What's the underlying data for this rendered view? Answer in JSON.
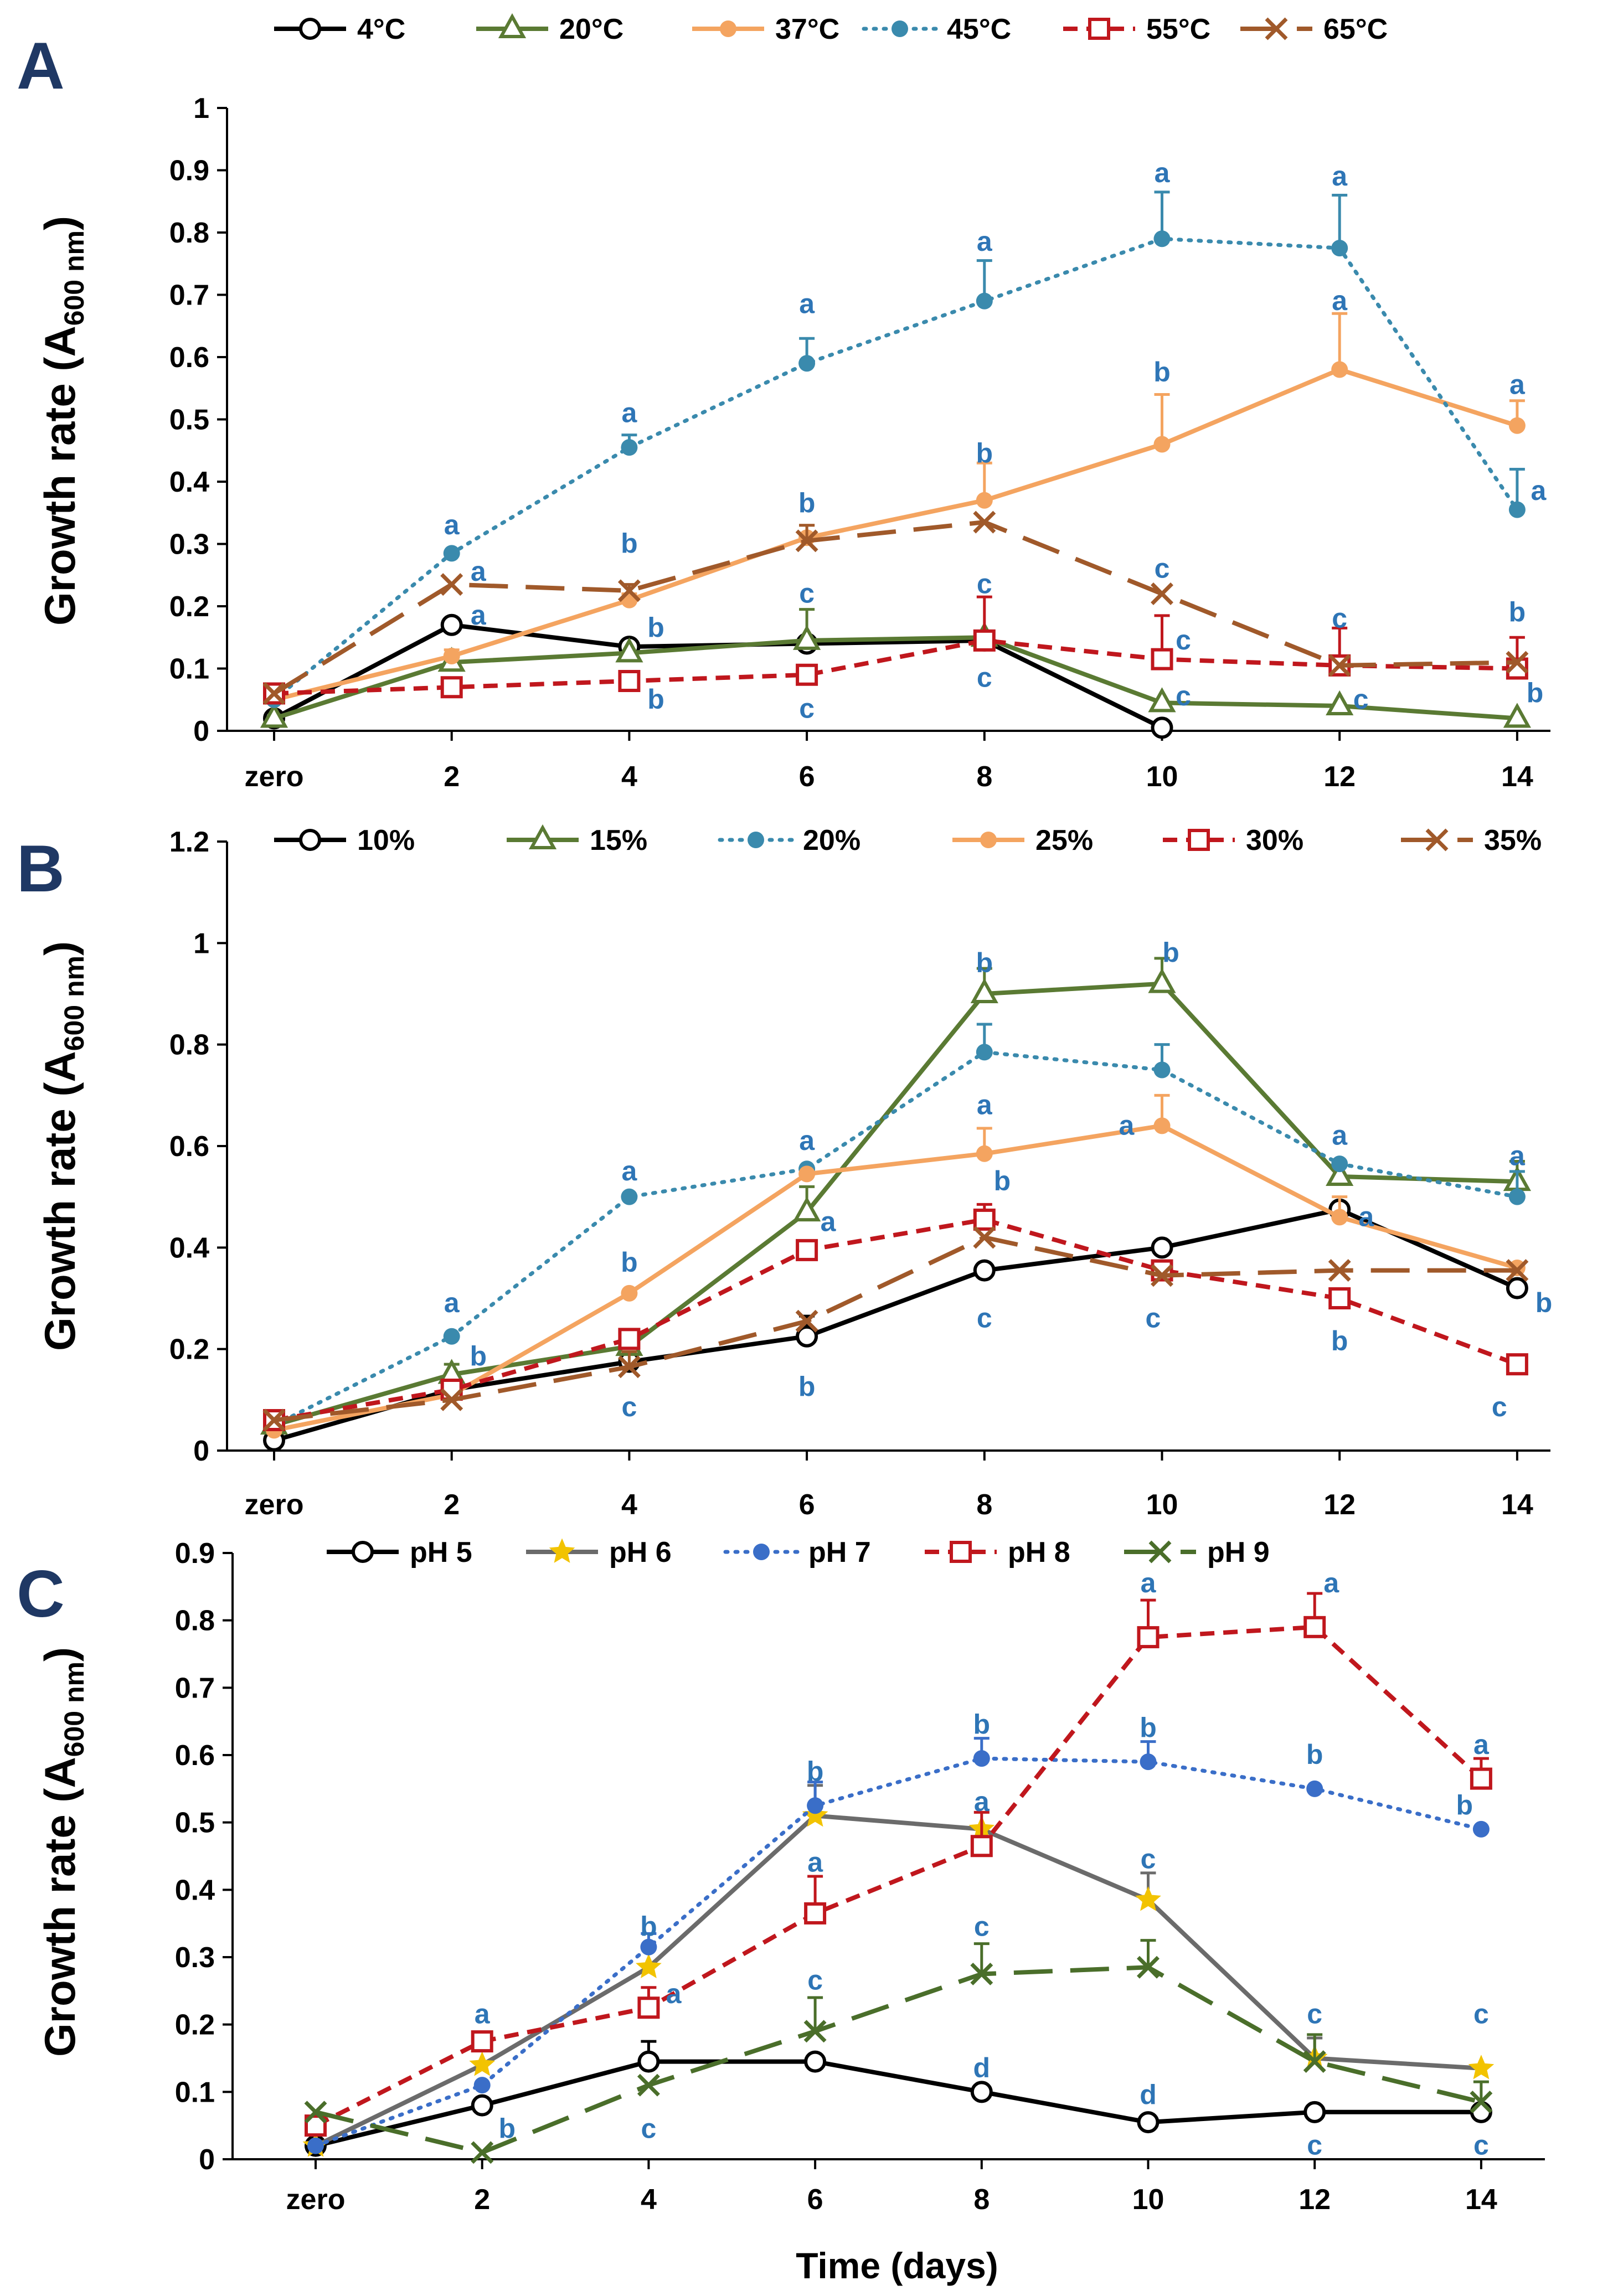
{
  "figure": {
    "x_axis_label": "Time (days)",
    "y_axis_label_main": "Growth rate (A",
    "y_axis_label_sub": "600 nm",
    "y_axis_label_close": ")"
  },
  "colors": {
    "black": "#000000",
    "olive": "#5a7a33",
    "orange": "#f4a460",
    "teal": "#3a8aad",
    "red": "#c0171d",
    "brown": "#a0592a",
    "gray": "#6b6b6b",
    "yellow": "#f2c300",
    "blue": "#3a6ec8",
    "green": "#4a6e2a",
    "annotation": "#2e75b6",
    "panel_letter": "#1f3864"
  },
  "chart_data": [
    {
      "panel": "A",
      "type": "line",
      "categories": [
        "zero",
        "2",
        "4",
        "6",
        "8",
        "10",
        "12",
        "14"
      ],
      "ylim": [
        0,
        1
      ],
      "yticks": [
        "0",
        "0.1",
        "0.2",
        "0.3",
        "0.4",
        "0.5",
        "0.6",
        "0.7",
        "0.8",
        "0.9",
        "1"
      ],
      "series": [
        {
          "name": "4°C",
          "color": "black",
          "dash": "solid",
          "marker": "circle-open",
          "values": [
            0.02,
            0.17,
            0.135,
            0.14,
            0.145,
            0.005,
            null,
            null
          ],
          "errors": [
            0,
            0,
            0.01,
            0,
            0,
            0,
            0,
            0
          ]
        },
        {
          "name": "20°C",
          "color": "olive",
          "dash": "solid",
          "marker": "triangle-open",
          "values": [
            0.02,
            0.11,
            0.125,
            0.145,
            0.15,
            0.045,
            0.04,
            0.02
          ],
          "errors": [
            0,
            0,
            0,
            0.05,
            0,
            0,
            0,
            0
          ]
        },
        {
          "name": "37°C",
          "color": "orange",
          "dash": "solid",
          "marker": "dot",
          "values": [
            0.05,
            0.12,
            0.21,
            0.31,
            0.37,
            0.46,
            0.58,
            0.49
          ],
          "errors": [
            0,
            0.01,
            0.01,
            0.02,
            0.06,
            0.08,
            0.09,
            0.04
          ]
        },
        {
          "name": "45°C",
          "color": "teal",
          "dash": "dotted",
          "marker": "dot",
          "values": [
            0.05,
            0.285,
            0.455,
            0.59,
            0.69,
            0.79,
            0.775,
            0.355
          ],
          "errors": [
            0,
            0,
            0.02,
            0.04,
            0.065,
            0.075,
            0.085,
            0.065
          ]
        },
        {
          "name": "55°C",
          "color": "red",
          "dash": "dashed",
          "marker": "square-open",
          "values": [
            0.06,
            0.07,
            0.08,
            0.09,
            0.145,
            0.115,
            0.105,
            0.1
          ],
          "errors": [
            0,
            0,
            0,
            0,
            0.07,
            0.07,
            0.06,
            0.05
          ]
        },
        {
          "name": "65°C",
          "color": "brown",
          "dash": "longdash",
          "marker": "x",
          "values": [
            0.06,
            0.235,
            0.225,
            0.305,
            0.335,
            0.22,
            0.105,
            0.11
          ],
          "errors": [
            0,
            0,
            0.01,
            0.025,
            0,
            0,
            0,
            0
          ]
        }
      ],
      "annotations": [
        {
          "text": "a",
          "x": 1,
          "y": 0.33
        },
        {
          "text": "a",
          "x": 1.15,
          "y": 0.255
        },
        {
          "text": "a",
          "x": 1.15,
          "y": 0.185
        },
        {
          "text": "a",
          "x": 2,
          "y": 0.51
        },
        {
          "text": "b",
          "x": 2,
          "y": 0.3
        },
        {
          "text": "b",
          "x": 2.15,
          "y": 0.165
        },
        {
          "text": "b",
          "x": 2.15,
          "y": 0.05
        },
        {
          "text": "a",
          "x": 3,
          "y": 0.685
        },
        {
          "text": "b",
          "x": 3,
          "y": 0.365
        },
        {
          "text": "c",
          "x": 3,
          "y": 0.22
        },
        {
          "text": "c",
          "x": 3,
          "y": 0.035
        },
        {
          "text": "a",
          "x": 4,
          "y": 0.785
        },
        {
          "text": "b",
          "x": 4,
          "y": 0.445
        },
        {
          "text": "c",
          "x": 4,
          "y": 0.235
        },
        {
          "text": "c",
          "x": 4,
          "y": 0.085
        },
        {
          "text": "a",
          "x": 5,
          "y": 0.895
        },
        {
          "text": "b",
          "x": 5,
          "y": 0.575
        },
        {
          "text": "c",
          "x": 5,
          "y": 0.26
        },
        {
          "text": "c",
          "x": 5.12,
          "y": 0.145
        },
        {
          "text": "c",
          "x": 5.12,
          "y": 0.055
        },
        {
          "text": "a",
          "x": 6,
          "y": 0.89
        },
        {
          "text": "a",
          "x": 6,
          "y": 0.69
        },
        {
          "text": "c",
          "x": 6,
          "y": 0.18
        },
        {
          "text": "c",
          "x": 6.12,
          "y": 0.05
        },
        {
          "text": "a",
          "x": 7,
          "y": 0.555
        },
        {
          "text": "a",
          "x": 7.12,
          "y": 0.385
        },
        {
          "text": "b",
          "x": 7,
          "y": 0.19
        },
        {
          "text": "b",
          "x": 7.1,
          "y": 0.06
        }
      ]
    },
    {
      "panel": "B",
      "type": "line",
      "categories": [
        "zero",
        "2",
        "4",
        "6",
        "8",
        "10",
        "12",
        "14"
      ],
      "ylim": [
        0,
        1.2
      ],
      "yticks": [
        "0",
        "0.2",
        "0.4",
        "0.6",
        "0.8",
        "1",
        "1.2"
      ],
      "series": [
        {
          "name": "10%",
          "color": "black",
          "dash": "solid",
          "marker": "circle-open",
          "values": [
            0.02,
            0.12,
            0.175,
            0.225,
            0.355,
            0.4,
            0.475,
            0.32
          ],
          "errors": [
            0,
            0,
            0,
            0.04,
            0,
            0,
            0,
            0
          ]
        },
        {
          "name": "15%",
          "color": "olive",
          "dash": "solid",
          "marker": "triangle-open",
          "values": [
            0.05,
            0.15,
            0.205,
            0.47,
            0.9,
            0.92,
            0.54,
            0.53
          ],
          "errors": [
            0,
            0.02,
            0,
            0.05,
            0.05,
            0.05,
            0,
            0.04
          ]
        },
        {
          "name": "20%",
          "color": "teal",
          "dash": "dotted",
          "marker": "dot",
          "values": [
            0.05,
            0.225,
            0.5,
            0.555,
            0.785,
            0.75,
            0.565,
            0.5
          ],
          "errors": [
            0,
            0,
            0,
            0,
            0.055,
            0.05,
            0,
            0.05
          ]
        },
        {
          "name": "25%",
          "color": "orange",
          "dash": "solid",
          "marker": "dot",
          "values": [
            0.04,
            0.11,
            0.31,
            0.545,
            0.585,
            0.64,
            0.46,
            0.36
          ],
          "errors": [
            0,
            0,
            0,
            0,
            0.05,
            0.06,
            0.04,
            0
          ]
        },
        {
          "name": "30%",
          "color": "red",
          "dash": "dashed",
          "marker": "square-open",
          "values": [
            0.06,
            0.12,
            0.22,
            0.395,
            0.455,
            0.355,
            0.3,
            0.17
          ],
          "errors": [
            0,
            0,
            0,
            0,
            0.03,
            0,
            0,
            0
          ]
        },
        {
          "name": "35%",
          "color": "brown",
          "dash": "longdash",
          "marker": "x",
          "values": [
            0.06,
            0.1,
            0.165,
            0.255,
            0.42,
            0.345,
            0.355,
            0.355
          ],
          "errors": [
            0,
            0,
            0.03,
            0,
            0,
            0,
            0,
            0
          ]
        }
      ],
      "annotations": [
        {
          "text": "a",
          "x": 1,
          "y": 0.29
        },
        {
          "text": "b",
          "x": 1.15,
          "y": 0.185
        },
        {
          "text": "a",
          "x": 2,
          "y": 0.55
        },
        {
          "text": "b",
          "x": 2,
          "y": 0.37
        },
        {
          "text": "c",
          "x": 2,
          "y": 0.085
        },
        {
          "text": "a",
          "x": 3,
          "y": 0.61
        },
        {
          "text": "a",
          "x": 3.12,
          "y": 0.45
        },
        {
          "text": "b",
          "x": 3,
          "y": 0.125
        },
        {
          "text": "b",
          "x": 4,
          "y": 0.96
        },
        {
          "text": "a",
          "x": 4,
          "y": 0.68
        },
        {
          "text": "b",
          "x": 4.1,
          "y": 0.53
        },
        {
          "text": "c",
          "x": 4,
          "y": 0.26
        },
        {
          "text": "b",
          "x": 5.05,
          "y": 0.98
        },
        {
          "text": "a",
          "x": 4.8,
          "y": 0.64
        },
        {
          "text": "c",
          "x": 4.95,
          "y": 0.26
        },
        {
          "text": "a",
          "x": 6,
          "y": 0.62
        },
        {
          "text": "a",
          "x": 6.15,
          "y": 0.46
        },
        {
          "text": "b",
          "x": 6,
          "y": 0.215
        },
        {
          "text": "a",
          "x": 7,
          "y": 0.58
        },
        {
          "text": "b",
          "x": 7.15,
          "y": 0.29
        },
        {
          "text": "c",
          "x": 6.9,
          "y": 0.085
        }
      ]
    },
    {
      "panel": "C",
      "type": "line",
      "categories": [
        "zero",
        "2",
        "4",
        "6",
        "8",
        "10",
        "12",
        "14"
      ],
      "ylim": [
        0,
        0.9
      ],
      "yticks": [
        "0",
        "0.1",
        "0.2",
        "0.3",
        "0.4",
        "0.5",
        "0.6",
        "0.7",
        "0.8",
        "0.9"
      ],
      "series": [
        {
          "name": "pH 5",
          "color": "black",
          "dash": "solid",
          "marker": "circle-open",
          "values": [
            0.02,
            0.08,
            0.145,
            0.145,
            0.1,
            0.055,
            0.07,
            0.07
          ],
          "errors": [
            0,
            0,
            0.03,
            0,
            0,
            0,
            0,
            0
          ]
        },
        {
          "name": "pH 6",
          "color": "gray",
          "dash": "solid",
          "marker": "star",
          "values": [
            0.02,
            0.14,
            0.285,
            0.51,
            0.49,
            0.385,
            0.15,
            0.135
          ],
          "errors": [
            0,
            0,
            0,
            0.045,
            0,
            0.04,
            0.03,
            0
          ]
        },
        {
          "name": "pH 7",
          "color": "blue",
          "dash": "dotted",
          "marker": "dot",
          "values": [
            0.02,
            0.11,
            0.315,
            0.525,
            0.595,
            0.59,
            0.55,
            0.49
          ],
          "errors": [
            0,
            0,
            0.02,
            0.035,
            0.03,
            0.03,
            0,
            0
          ]
        },
        {
          "name": "pH 8",
          "color": "red",
          "dash": "dashed",
          "marker": "square-open",
          "values": [
            0.05,
            0.175,
            0.225,
            0.365,
            0.465,
            0.775,
            0.79,
            0.565
          ],
          "errors": [
            0,
            0,
            0.03,
            0.055,
            0.05,
            0.055,
            0.05,
            0.03
          ]
        },
        {
          "name": "pH 9",
          "color": "green",
          "dash": "longdash",
          "marker": "x",
          "values": [
            0.07,
            0.01,
            0.11,
            0.19,
            0.275,
            0.285,
            0.145,
            0.085
          ],
          "errors": [
            0,
            0,
            0,
            0.05,
            0.045,
            0.04,
            0.04,
            0.03
          ]
        }
      ],
      "annotations": [
        {
          "text": "a",
          "x": 1,
          "y": 0.215
        },
        {
          "text": "b",
          "x": 1.15,
          "y": 0.045
        },
        {
          "text": "b",
          "x": 2,
          "y": 0.345
        },
        {
          "text": "a",
          "x": 2.15,
          "y": 0.245
        },
        {
          "text": "c",
          "x": 2,
          "y": 0.045
        },
        {
          "text": "b",
          "x": 3,
          "y": 0.575
        },
        {
          "text": "a",
          "x": 3,
          "y": 0.44
        },
        {
          "text": "c",
          "x": 3,
          "y": 0.265
        },
        {
          "text": "b",
          "x": 4,
          "y": 0.645
        },
        {
          "text": "a",
          "x": 4,
          "y": 0.53
        },
        {
          "text": "c",
          "x": 4,
          "y": 0.345
        },
        {
          "text": "d",
          "x": 4,
          "y": 0.135
        },
        {
          "text": "a",
          "x": 5,
          "y": 0.855
        },
        {
          "text": "b",
          "x": 5,
          "y": 0.64
        },
        {
          "text": "c",
          "x": 5,
          "y": 0.445
        },
        {
          "text": "d",
          "x": 5,
          "y": 0.095
        },
        {
          "text": "a",
          "x": 6.1,
          "y": 0.855
        },
        {
          "text": "b",
          "x": 6,
          "y": 0.6
        },
        {
          "text": "c",
          "x": 6,
          "y": 0.215
        },
        {
          "text": "c",
          "x": 6,
          "y": 0.02
        },
        {
          "text": "a",
          "x": 7,
          "y": 0.615
        },
        {
          "text": "b",
          "x": 6.9,
          "y": 0.525
        },
        {
          "text": "c",
          "x": 7,
          "y": 0.215
        },
        {
          "text": "c",
          "x": 7,
          "y": 0.02
        }
      ]
    }
  ]
}
